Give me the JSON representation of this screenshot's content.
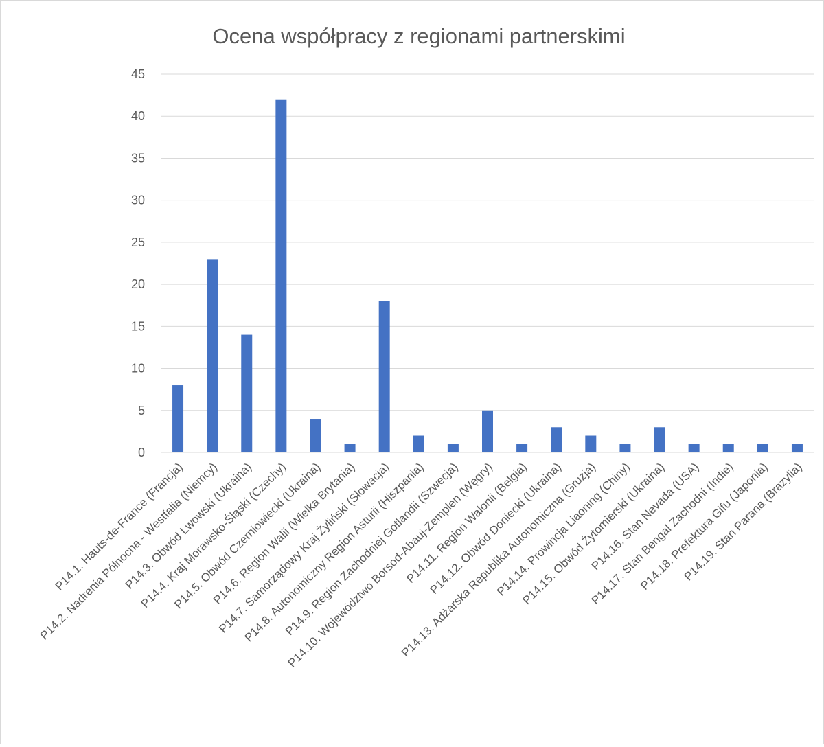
{
  "chart_data": {
    "type": "bar",
    "title": "Ocena współpracy z regionami partnerskimi",
    "xlabel": "",
    "ylabel": "",
    "ylim": [
      0,
      45
    ],
    "yticks": [
      0,
      5,
      10,
      15,
      20,
      25,
      30,
      35,
      40,
      45
    ],
    "grid": true,
    "legend": "none",
    "bar_color": "#4472c4",
    "grid_color": "#d9d9d9",
    "text_color": "#595959",
    "categories": [
      "P14.1. Hauts-de-France (Francja)",
      "P14.2. Nadrenia Północna - Westfalia (Niemcy)",
      "P14.3. Obwód Lwowski (Ukraina)",
      "P14.4. Kraj Morawsko-Śląski (Czechy)",
      "P14.5. Obwód Czerniowiecki (Ukraina)",
      "P14.6. Region Walii (Wielka Brytania)",
      "P14.7. Samorządowy Kraj Żyliński (Słowacja)",
      "P14.8. Autonomiczny Region Asturii (Hiszpania)",
      "P14.9. Region Zachodniej Gotlandii (Szwecja)",
      "P14.10. Województwo Borsod-Abauj-Zemplen (Węgry)",
      "P14.11. Region Walonii (Belgia)",
      "P14.12. Obwód Doniecki (Ukraina)",
      "P14.13. Adżarska Republika Autonomiczna (Gruzja)",
      "P14.14. Prowincja Liaoning (Chiny)",
      "P14.15. Obwód Żytomierski (Ukraina)",
      "P14.16. Stan Nevada (USA)",
      "P14.17. Stan Bengal Zachodni (Indie)",
      "P14.18. Prefektura Gifu (Japonia)",
      "P14.19. Stan Parana (Brazylia)"
    ],
    "values": [
      8,
      23,
      14,
      42,
      4,
      1,
      18,
      2,
      1,
      5,
      1,
      3,
      2,
      1,
      3,
      1,
      1,
      1,
      1
    ]
  }
}
